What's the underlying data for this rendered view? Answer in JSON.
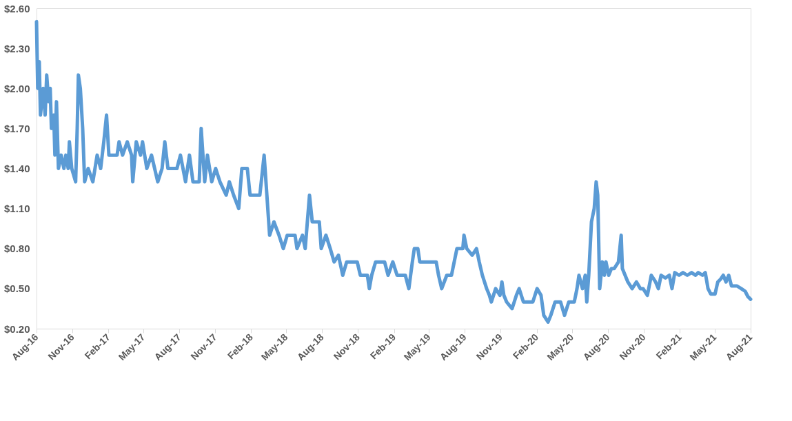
{
  "chart_data": {
    "type": "line",
    "x": [
      "2016-08-01",
      "2016-08-04",
      "2016-08-08",
      "2016-08-11",
      "2016-08-18",
      "2016-08-23",
      "2016-08-27",
      "2016-09-01",
      "2016-09-05",
      "2016-09-08",
      "2016-09-14",
      "2016-09-17",
      "2016-09-21",
      "2016-09-26",
      "2016-10-03",
      "2016-10-10",
      "2016-10-15",
      "2016-10-21",
      "2016-10-24",
      "2016-10-30",
      "2016-11-09",
      "2016-11-13",
      "2016-11-16",
      "2016-11-21",
      "2016-11-27",
      "2016-12-02",
      "2016-12-11",
      "2016-12-23",
      "2017-01-03",
      "2017-01-12",
      "2017-01-20",
      "2017-01-27",
      "2017-02-02",
      "2017-02-23",
      "2017-02-28",
      "2017-03-09",
      "2017-03-21",
      "2017-04-01",
      "2017-04-04",
      "2017-04-13",
      "2017-04-24",
      "2017-04-29",
      "2017-05-10",
      "2017-05-22",
      "2017-06-07",
      "2017-06-18",
      "2017-06-25",
      "2017-07-03",
      "2017-07-26",
      "2017-08-04",
      "2017-08-17",
      "2017-08-27",
      "2017-09-05",
      "2017-09-21",
      "2017-09-26",
      "2017-10-05",
      "2017-10-12",
      "2017-10-23",
      "2017-11-02",
      "2017-11-13",
      "2017-11-29",
      "2017-12-07",
      "2017-12-18",
      "2017-12-31",
      "2018-01-08",
      "2018-01-22",
      "2018-01-29",
      "2018-02-23",
      "2018-03-06",
      "2018-03-13",
      "2018-03-20",
      "2018-03-31",
      "2018-04-13",
      "2018-04-24",
      "2018-05-04",
      "2018-05-24",
      "2018-05-29",
      "2018-06-12",
      "2018-06-19",
      "2018-06-30",
      "2018-07-07",
      "2018-07-25",
      "2018-07-30",
      "2018-08-11",
      "2018-08-22",
      "2018-09-01",
      "2018-09-12",
      "2018-09-23",
      "2018-10-03",
      "2018-10-30",
      "2018-11-07",
      "2018-11-25",
      "2018-11-30",
      "2018-12-06",
      "2018-12-16",
      "2019-01-08",
      "2019-01-17",
      "2019-01-29",
      "2019-02-09",
      "2019-03-02",
      "2019-03-11",
      "2019-03-20",
      "2019-03-25",
      "2019-04-03",
      "2019-04-08",
      "2019-05-20",
      "2019-05-26",
      "2019-06-03",
      "2019-06-16",
      "2019-06-28",
      "2019-07-05",
      "2019-07-12",
      "2019-07-27",
      "2019-07-30",
      "2019-08-06",
      "2019-08-20",
      "2019-08-31",
      "2019-09-07",
      "2019-09-15",
      "2019-09-26",
      "2019-10-03",
      "2019-10-08",
      "2019-10-19",
      "2019-10-30",
      "2019-11-04",
      "2019-11-09",
      "2019-11-16",
      "2019-11-30",
      "2019-12-11",
      "2019-12-18",
      "2019-12-29",
      "2020-01-22",
      "2020-02-02",
      "2020-02-12",
      "2020-02-19",
      "2020-03-01",
      "2020-03-08",
      "2020-03-19",
      "2020-04-02",
      "2020-04-12",
      "2020-04-23",
      "2020-05-07",
      "2020-05-14",
      "2020-05-19",
      "2020-05-28",
      "2020-06-04",
      "2020-06-08",
      "2020-06-13",
      "2020-06-20",
      "2020-06-27",
      "2020-07-02",
      "2020-07-06",
      "2020-07-11",
      "2020-07-18",
      "2020-07-23",
      "2020-07-27",
      "2020-08-03",
      "2020-08-10",
      "2020-08-17",
      "2020-08-28",
      "2020-09-04",
      "2020-09-07",
      "2020-09-14",
      "2020-09-21",
      "2020-10-02",
      "2020-10-13",
      "2020-10-23",
      "2020-10-30",
      "2020-11-10",
      "2020-11-20",
      "2020-12-01",
      "2020-12-08",
      "2020-12-15",
      "2020-12-26",
      "2021-01-05",
      "2021-01-12",
      "2021-01-19",
      "2021-01-30",
      "2021-02-09",
      "2021-02-20",
      "2021-03-03",
      "2021-03-13",
      "2021-03-20",
      "2021-03-31",
      "2021-04-07",
      "2021-04-14",
      "2021-04-21",
      "2021-05-02",
      "2021-05-09",
      "2021-05-16",
      "2021-05-23",
      "2021-05-30",
      "2021-06-06",
      "2021-06-13",
      "2021-06-27",
      "2021-07-08",
      "2021-07-18",
      "2021-07-25",
      "2021-08-01"
    ],
    "series": [
      {
        "color": "#5b9bd5",
        "values": [
          2.5,
          2.0,
          2.2,
          1.8,
          2.0,
          1.8,
          2.1,
          1.9,
          2.0,
          1.7,
          1.8,
          1.5,
          1.9,
          1.4,
          1.5,
          1.4,
          1.5,
          1.4,
          1.6,
          1.4,
          1.3,
          1.7,
          2.1,
          2.0,
          1.7,
          1.3,
          1.4,
          1.3,
          1.5,
          1.4,
          1.6,
          1.8,
          1.5,
          1.5,
          1.6,
          1.5,
          1.6,
          1.5,
          1.3,
          1.6,
          1.5,
          1.6,
          1.4,
          1.5,
          1.3,
          1.4,
          1.6,
          1.4,
          1.4,
          1.5,
          1.3,
          1.5,
          1.3,
          1.3,
          1.7,
          1.3,
          1.5,
          1.3,
          1.4,
          1.3,
          1.2,
          1.3,
          1.2,
          1.1,
          1.4,
          1.4,
          1.2,
          1.2,
          1.5,
          1.2,
          0.9,
          1.0,
          0.9,
          0.8,
          0.9,
          0.9,
          0.8,
          0.9,
          0.8,
          1.2,
          1.0,
          1.0,
          0.8,
          0.9,
          0.8,
          0.7,
          0.75,
          0.6,
          0.7,
          0.7,
          0.6,
          0.6,
          0.5,
          0.6,
          0.7,
          0.7,
          0.6,
          0.7,
          0.6,
          0.6,
          0.5,
          0.7,
          0.8,
          0.8,
          0.7,
          0.7,
          0.6,
          0.5,
          0.6,
          0.6,
          0.7,
          0.8,
          0.8,
          0.9,
          0.8,
          0.75,
          0.8,
          0.7,
          0.6,
          0.5,
          0.45,
          0.4,
          0.5,
          0.45,
          0.55,
          0.45,
          0.4,
          0.35,
          0.45,
          0.5,
          0.4,
          0.4,
          0.5,
          0.45,
          0.3,
          0.25,
          0.3,
          0.4,
          0.4,
          0.3,
          0.4,
          0.4,
          0.5,
          0.6,
          0.5,
          0.6,
          0.4,
          0.6,
          1.0,
          1.1,
          1.3,
          1.2,
          0.5,
          0.7,
          0.6,
          0.7,
          0.6,
          0.65,
          0.65,
          0.7,
          0.9,
          0.65,
          0.6,
          0.55,
          0.5,
          0.55,
          0.5,
          0.5,
          0.45,
          0.6,
          0.55,
          0.5,
          0.6,
          0.58,
          0.6,
          0.5,
          0.62,
          0.6,
          0.62,
          0.6,
          0.62,
          0.6,
          0.62,
          0.6,
          0.62,
          0.5,
          0.46,
          0.46,
          0.55,
          0.57,
          0.6,
          0.55,
          0.6,
          0.52,
          0.52,
          0.5,
          0.48,
          0.44,
          0.42
        ]
      }
    ],
    "xlim": [
      "2016-08-01",
      "2021-08-01"
    ],
    "xticks": [
      {
        "value": "2016-08-01",
        "label": "Aug-16"
      },
      {
        "value": "2016-11-01",
        "label": "Nov-16"
      },
      {
        "value": "2017-02-01",
        "label": "Feb-17"
      },
      {
        "value": "2017-05-01",
        "label": "May-17"
      },
      {
        "value": "2017-08-01",
        "label": "Aug-17"
      },
      {
        "value": "2017-11-01",
        "label": "Nov-17"
      },
      {
        "value": "2018-02-01",
        "label": "Feb-18"
      },
      {
        "value": "2018-05-01",
        "label": "May-18"
      },
      {
        "value": "2018-08-01",
        "label": "Aug-18"
      },
      {
        "value": "2018-11-01",
        "label": "Nov-18"
      },
      {
        "value": "2019-02-01",
        "label": "Feb-19"
      },
      {
        "value": "2019-05-01",
        "label": "May-19"
      },
      {
        "value": "2019-08-01",
        "label": "Aug-19"
      },
      {
        "value": "2019-11-01",
        "label": "Nov-19"
      },
      {
        "value": "2020-02-01",
        "label": "Feb-20"
      },
      {
        "value": "2020-05-01",
        "label": "May-20"
      },
      {
        "value": "2020-08-01",
        "label": "Aug-20"
      },
      {
        "value": "2020-11-01",
        "label": "Nov-20"
      },
      {
        "value": "2021-02-01",
        "label": "Feb-21"
      },
      {
        "value": "2021-05-01",
        "label": "May-21"
      },
      {
        "value": "2021-08-01",
        "label": "Aug-21"
      }
    ],
    "ylim": [
      0.2,
      2.6
    ],
    "yticks": [
      {
        "value": 0.2,
        "label": "$0.20"
      },
      {
        "value": 0.5,
        "label": "$0.50"
      },
      {
        "value": 0.8,
        "label": "$0.80"
      },
      {
        "value": 1.1,
        "label": "$1.10"
      },
      {
        "value": 1.4,
        "label": "$1.40"
      },
      {
        "value": 1.7,
        "label": "$1.70"
      },
      {
        "value": 2.0,
        "label": "$2.00"
      },
      {
        "value": 2.3,
        "label": "$2.30"
      },
      {
        "value": 2.6,
        "label": "$2.60"
      }
    ],
    "grid": false,
    "legend": false,
    "marker": "none",
    "line_style": "solid"
  }
}
